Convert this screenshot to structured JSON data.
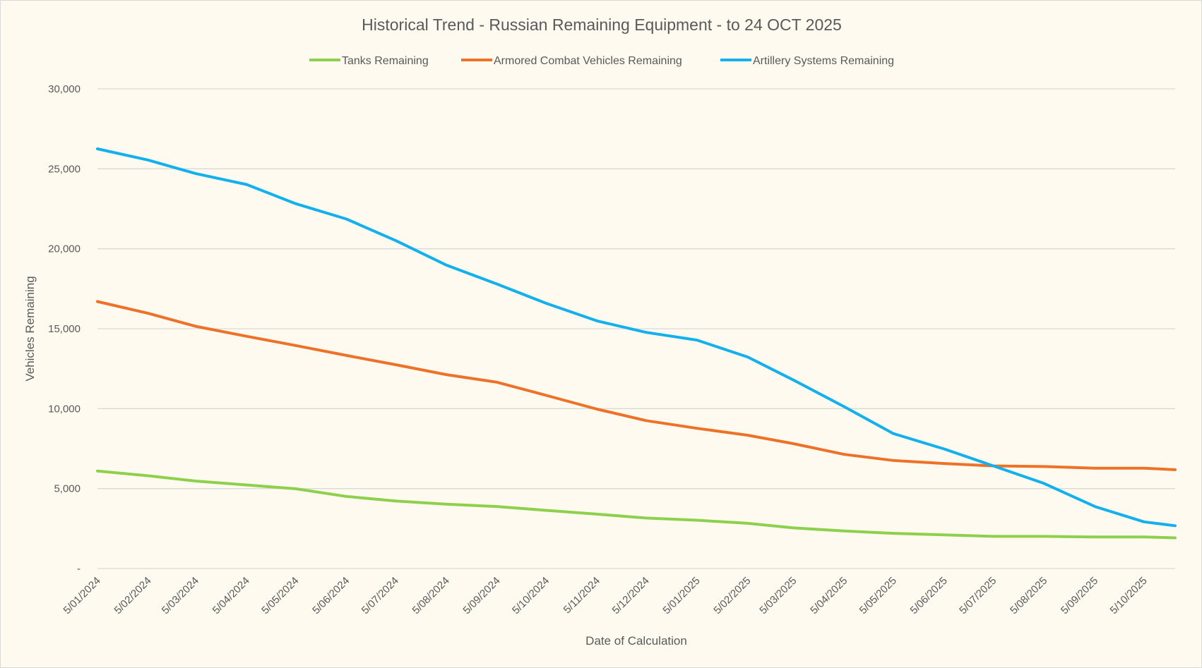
{
  "chart_data": {
    "type": "line",
    "title": "Historical Trend - Russian Remaining Equipment - to 24 OCT 2025",
    "xlabel": "Date of Calculation",
    "ylabel": "Vehicles Remaining",
    "ylim": [
      0,
      30000
    ],
    "yticks": [
      0,
      5000,
      10000,
      15000,
      20000,
      25000,
      30000
    ],
    "ytick_labels": [
      "-",
      "5,000",
      "10,000",
      "15,000",
      "20,000",
      "25,000",
      "30,000"
    ],
    "xlim": [
      "2024-01-05",
      "2025-10-24"
    ],
    "xticks": [
      "2024-01-05",
      "2024-02-05",
      "2024-03-05",
      "2024-04-05",
      "2024-05-05",
      "2024-06-05",
      "2024-07-05",
      "2024-08-05",
      "2024-09-05",
      "2024-10-05",
      "2024-11-05",
      "2024-12-05",
      "2025-01-05",
      "2025-02-05",
      "2025-03-05",
      "2025-04-05",
      "2025-05-05",
      "2025-06-05",
      "2025-07-05",
      "2025-08-05",
      "2025-09-05",
      "2025-10-05"
    ],
    "xtick_labels": [
      "5/01/2024",
      "5/02/2024",
      "5/03/2024",
      "5/04/2024",
      "5/05/2024",
      "5/06/2024",
      "5/07/2024",
      "5/08/2024",
      "5/09/2024",
      "5/10/2024",
      "5/11/2024",
      "5/12/2024",
      "5/01/2025",
      "5/02/2025",
      "5/03/2025",
      "5/04/2025",
      "5/05/2025",
      "5/06/2025",
      "5/07/2025",
      "5/08/2025",
      "5/09/2025",
      "5/10/2025"
    ],
    "grid": true,
    "legend_position": "top",
    "x": [
      "2024-01-05",
      "2024-02-05",
      "2024-03-05",
      "2024-04-05",
      "2024-05-05",
      "2024-06-05",
      "2024-07-05",
      "2024-08-05",
      "2024-09-05",
      "2024-10-05",
      "2024-11-05",
      "2024-12-05",
      "2025-01-05",
      "2025-02-05",
      "2025-03-05",
      "2025-04-05",
      "2025-05-05",
      "2025-06-05",
      "2025-07-05",
      "2025-08-05",
      "2025-09-05",
      "2025-10-05",
      "2025-10-24"
    ],
    "series": [
      {
        "name": "Tanks Remaining",
        "color": "#8dd04c",
        "values": [
          6100,
          5800,
          5470,
          5230,
          4990,
          4510,
          4220,
          4030,
          3880,
          3640,
          3400,
          3160,
          3020,
          2830,
          2540,
          2350,
          2200,
          2110,
          2010,
          2010,
          1970,
          1970,
          1920
        ]
      },
      {
        "name": "Armored Combat Vehicles Remaining",
        "color": "#ee7128",
        "values": [
          16700,
          15960,
          15150,
          14530,
          13950,
          13330,
          12750,
          12130,
          11650,
          10830,
          9970,
          9250,
          8770,
          8340,
          7810,
          7140,
          6760,
          6570,
          6420,
          6380,
          6280,
          6280,
          6180
        ]
      },
      {
        "name": "Artillery Systems Remaining",
        "color": "#12b0ec",
        "values": [
          26250,
          25550,
          24700,
          24020,
          22820,
          21860,
          20520,
          18980,
          17790,
          16590,
          15490,
          14770,
          14290,
          13230,
          11790,
          10120,
          8440,
          7480,
          6420,
          5320,
          3880,
          2920,
          2680
        ]
      }
    ]
  }
}
